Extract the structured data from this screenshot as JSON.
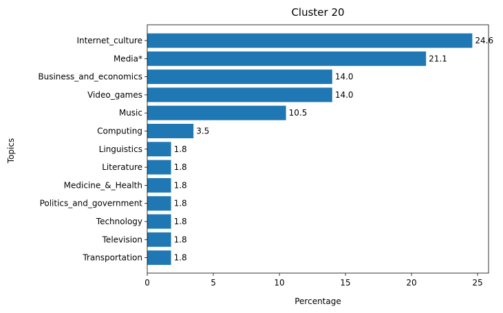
{
  "chart_data": {
    "type": "bar",
    "orientation": "horizontal",
    "title": "Cluster 20",
    "xlabel": "Percentage",
    "ylabel": "Topics",
    "categories": [
      "Internet_culture",
      "Media*",
      "Business_and_economics",
      "Video_games",
      "Music",
      "Computing",
      "Linguistics",
      "Literature",
      "Medicine_&_Health",
      "Politics_and_government",
      "Technology",
      "Television",
      "Transportation"
    ],
    "values": [
      24.6,
      21.1,
      14.0,
      14.0,
      10.5,
      3.5,
      1.8,
      1.8,
      1.8,
      1.8,
      1.8,
      1.8,
      1.8
    ],
    "value_labels": [
      "24.6",
      "21.1",
      "14.0",
      "14.0",
      "10.5",
      "3.5",
      "1.8",
      "1.8",
      "1.8",
      "1.8",
      "1.8",
      "1.8",
      "1.8"
    ],
    "xlim": [
      0,
      25.83
    ],
    "xticks": [
      0,
      5,
      10,
      15,
      20,
      25
    ],
    "grid": false,
    "bar_color": "#1f77b4"
  }
}
